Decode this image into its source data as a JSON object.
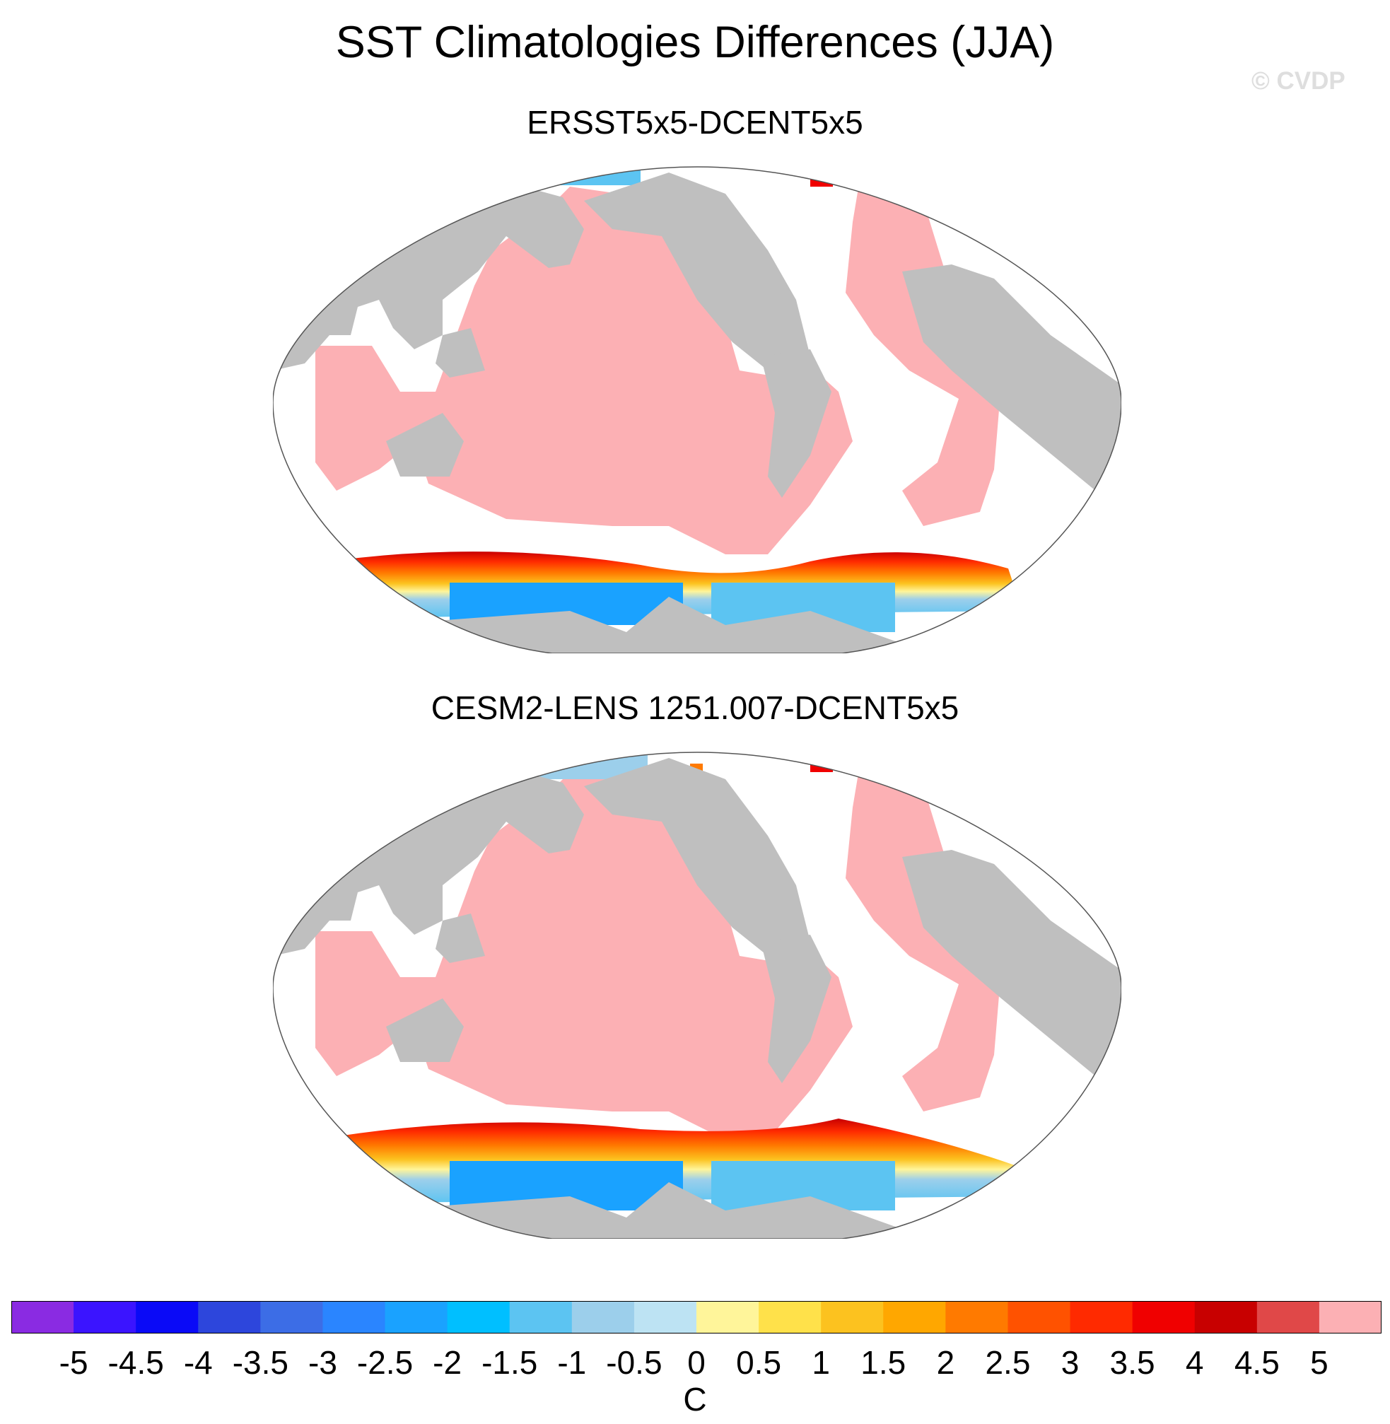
{
  "figure": {
    "title": "SST Climatologies Differences (JJA)",
    "watermark": "© CVDP"
  },
  "panels": [
    {
      "title": "ERSST5x5-DCENT5x5"
    },
    {
      "title": "CESM2-LENS 1251.007-DCENT5x5"
    }
  ],
  "map": {
    "projection": "Winkel tripel (global, Pacific-centered)",
    "land_color": "#bfbfbf",
    "missing_color": "#ffffff",
    "dominant_ocean_color": "#fcb0b4"
  },
  "colorbar": {
    "unit": "C",
    "labels": [
      "-5",
      "-4.5",
      "-4",
      "-3.5",
      "-3",
      "-2.5",
      "-2",
      "-1.5",
      "-1",
      "-0.5",
      "0",
      "0.5",
      "1",
      "1.5",
      "2",
      "2.5",
      "3",
      "3.5",
      "4",
      "4.5",
      "5"
    ],
    "colors": [
      "#8a2be2",
      "#3b14ff",
      "#0a0af7",
      "#2d46dc",
      "#3c6de6",
      "#2a85ff",
      "#1aa2ff",
      "#00bfff",
      "#5cc4f2",
      "#9ccfeb",
      "#bde3f3",
      "#fff59a",
      "#ffe14a",
      "#fcc21f",
      "#ffa700",
      "#ff7a00",
      "#ff5200",
      "#ff2a00",
      "#f00000",
      "#c80000",
      "#e04848",
      "#fcb0b4"
    ]
  }
}
